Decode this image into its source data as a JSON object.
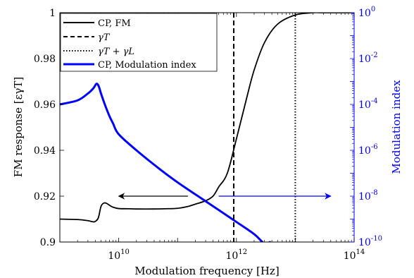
{
  "chart_data": {
    "type": "line",
    "xlabel": "Modulation frequency [Hz]",
    "ylabel_left": "FM response [εγT]",
    "ylabel_right": "Modulation index",
    "x_scale": "log",
    "xlim": [
      1000000000,
      100000000000000
    ],
    "x_ticks": [
      {
        "exp": "10",
        "value": 10000000000
      },
      {
        "exp": "12",
        "value": 1000000000000
      },
      {
        "exp": "14",
        "value": 100000000000000
      }
    ],
    "ylim_left": [
      0.9,
      1.0
    ],
    "y_ticks_left": [
      "0.9",
      "0.92",
      "0.94",
      "0.96",
      "0.98",
      "1"
    ],
    "ylim_right": [
      1e-10,
      1
    ],
    "y_ticks_right": [
      {
        "exp": "-10",
        "value": 1e-10
      },
      {
        "exp": "-8",
        "value": 1e-08
      },
      {
        "exp": "-6",
        "value": 1e-06
      },
      {
        "exp": "-4",
        "value": 0.0001
      },
      {
        "exp": "-2",
        "value": 0.01
      },
      {
        "exp": "0",
        "value": 1
      }
    ],
    "colors": {
      "fm": "#000000",
      "mod": "#0000ff",
      "axis_left": "#000000",
      "axis_right": "#0000ff"
    },
    "legend": {
      "position": "top-left",
      "entries": [
        {
          "label": "CP, FM",
          "style": "solid",
          "color": "#000000"
        },
        {
          "label": "γT",
          "style": "dashed",
          "color": "#000000"
        },
        {
          "label": "γT + γL",
          "style": "dotted",
          "color": "#000000"
        },
        {
          "label": "CP, Modulation index",
          "style": "solid",
          "color": "#0000ff"
        }
      ]
    },
    "vlines": [
      {
        "x": 900000000000,
        "style": "dashed",
        "label": "γT"
      },
      {
        "x": 10000000000000,
        "style": "dotted",
        "label": "γT + γL"
      }
    ],
    "arrows": [
      {
        "from_x": 150000000000,
        "to_x": 10000000000,
        "y_right": 1e-08,
        "color": "#000000",
        "direction": "left",
        "axis": "left"
      },
      {
        "from_x": 500000000000,
        "to_x": 40000000000000,
        "y_right": 1e-08,
        "color": "#0000ff",
        "direction": "right",
        "axis": "right"
      }
    ],
    "series": [
      {
        "name": "CP, FM",
        "axis": "left",
        "color": "#000000",
        "style": "solid",
        "x": [
          1000000000,
          2000000000,
          3000000000,
          3700000000,
          4000000000,
          4500000000,
          5000000000,
          5600000000,
          6300000000,
          7000000000,
          8000000000,
          10000000000,
          15000000000,
          20000000000,
          40000000000,
          60000000000,
          100000000000,
          150000000000,
          200000000000,
          300000000000,
          400000000000,
          500000000000,
          700000000000,
          1000000000000,
          1500000000000,
          2000000000000,
          3000000000000,
          5000000000000,
          10000000000000,
          20000000000000,
          30000000000000,
          100000000000000
        ],
        "y": [
          0.91,
          0.9098,
          0.9093,
          0.9088,
          0.909,
          0.9105,
          0.9155,
          0.917,
          0.9168,
          0.916,
          0.9152,
          0.9146,
          0.9145,
          0.9144,
          0.9144,
          0.9145,
          0.9147,
          0.9155,
          0.9165,
          0.918,
          0.92,
          0.924,
          0.93,
          0.945,
          0.963,
          0.975,
          0.987,
          0.995,
          0.999,
          1.0,
          1.0,
          1.0
        ]
      },
      {
        "name": "CP, Modulation index",
        "axis": "right",
        "color": "#0000ff",
        "style": "solid",
        "x": [
          1000000000,
          2000000000,
          3000000000,
          3700000000,
          4200000000,
          4600000000,
          5000000000,
          6000000000,
          7000000000,
          8000000000,
          10000000000,
          20000000000,
          50000000000,
          100000000000,
          200000000000,
          500000000000,
          1000000000000,
          2000000000000,
          3000000000000,
          3700000000000
        ],
        "y": [
          0.0001,
          0.00015,
          0.0003,
          0.0005,
          0.0008,
          0.0006,
          0.0003,
          8e-05,
          3e-05,
          1.5e-05,
          5e-06,
          1e-06,
          1.5e-07,
          4e-08,
          1.2e-08,
          2.5e-09,
          7.5e-10,
          2.2e-10,
          8.5e-11,
          1e-10
        ]
      }
    ]
  }
}
